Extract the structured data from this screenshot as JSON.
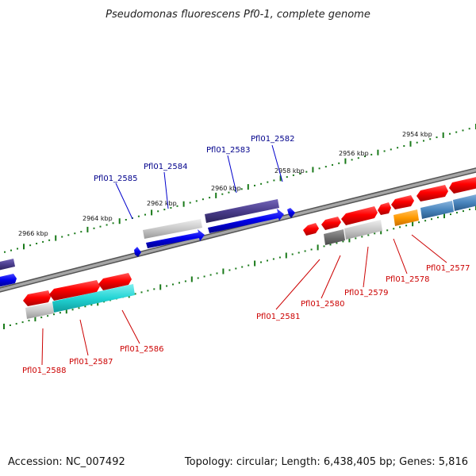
{
  "title": "Pseudomonas fluorescens Pf0-1, complete genome",
  "footer": {
    "accession": "Accession: NC_007492",
    "summary": "Topology: circular; Length: 6,438,405 bp; Genes: 5,816"
  },
  "ruler_labels": [
    "2954 kbp",
    "2956 kbp",
    "2958 kbp",
    "2960 kbp",
    "2962 kbp",
    "2964 kbp",
    "2966 kbp"
  ],
  "upper_gene_labels": [
    "Pfl01_2582",
    "Pfl01_2583",
    "Pfl01_2584",
    "Pfl01_2585"
  ],
  "lower_gene_labels": [
    "Pfl01_2577",
    "Pfl01_2578",
    "Pfl01_2579",
    "Pfl01_2580",
    "Pfl01_2581",
    "Pfl01_2586",
    "Pfl01_2587",
    "Pfl01_2588"
  ],
  "colors": {
    "upper_label": "#00008b",
    "lower_label": "#cc0000",
    "backbone": "#8a8a8a",
    "tick": "#1a7a1a"
  }
}
